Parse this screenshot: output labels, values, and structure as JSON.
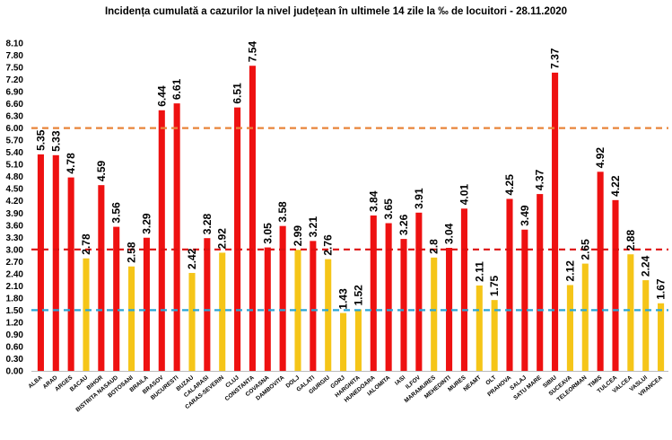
{
  "chart_data": {
    "type": "bar",
    "title": "Incidența cumulată a cazurilor la nivel județean în ultimele 14 zile la ‰ de locuitori - 28.11.2020",
    "xlabel": "",
    "ylabel": "",
    "ylim": [
      0,
      8.1
    ],
    "ytick_step": 0.3,
    "grid": false,
    "categories": [
      "ALBA",
      "ARAD",
      "ARGES",
      "BACAU",
      "BIHOR",
      "BISTRITA NASAUD",
      "BOTOSANI",
      "BRAILA",
      "BRASOV",
      "BUCURESTI",
      "BUZAU",
      "CALARASI",
      "CARAS-SEVERIN",
      "CLUJ",
      "CONSTANTA",
      "COVASNA",
      "DAMBOVITA",
      "DOLJ",
      "GALATI",
      "GIURGIU",
      "GORJ",
      "HARGHITA",
      "HUNEDOARA",
      "IALOMITA",
      "IASI",
      "ILFOV",
      "MARAMURES",
      "MEHEDINTI",
      "MURES",
      "NEAMT",
      "OLT",
      "PRAHOVA",
      "SALAJ",
      "SATU MARE",
      "SIBIU",
      "SUCEAVA",
      "TELEORMAN",
      "TIMIS",
      "TULCEA",
      "VALCEA",
      "VASLUI",
      "VRANCEA"
    ],
    "value_labels": [
      "5.35",
      "5.33",
      "4.78",
      "2.78",
      "4.59",
      "3.56",
      "2.58",
      "3.29",
      "6.44",
      "6.61",
      "2.42",
      "3.28",
      "2.92",
      "6.51",
      "7.54",
      "3.05",
      "3.58",
      "2.99",
      "3.21",
      "2.76",
      "1.43",
      "1.52",
      "3.84",
      "3.65",
      "3.26",
      "3.91",
      "2.8",
      "3.04",
      "4.01",
      "2.11",
      "1.75",
      "4.25",
      "3.49",
      "4.37",
      "7.37",
      "2.12",
      "2.65",
      "4.92",
      "4.22",
      "2.88",
      "2.24",
      "1.67"
    ],
    "series": [
      {
        "values": [
          5.35,
          5.33,
          4.78,
          2.78,
          4.59,
          3.56,
          2.58,
          3.29,
          6.44,
          6.61,
          2.42,
          3.28,
          2.92,
          6.51,
          7.54,
          3.05,
          3.58,
          2.99,
          3.21,
          2.76,
          1.43,
          1.52,
          3.84,
          3.65,
          3.26,
          3.91,
          2.8,
          3.04,
          4.01,
          2.11,
          1.75,
          4.25,
          3.49,
          4.37,
          7.37,
          2.12,
          2.65,
          4.92,
          4.22,
          2.88,
          2.24,
          1.67
        ]
      }
    ],
    "colors": {
      "above_3": "#ee1111",
      "below_3": "#f5c518"
    },
    "color_threshold": 3.0,
    "reference_lines": [
      {
        "value": 6.0,
        "color": "#e8843a",
        "style": "dashed"
      },
      {
        "value": 3.0,
        "color": "#dd1111",
        "style": "dashed"
      },
      {
        "value": 1.5,
        "color": "#2aa6d6",
        "style": "dashed"
      }
    ]
  }
}
